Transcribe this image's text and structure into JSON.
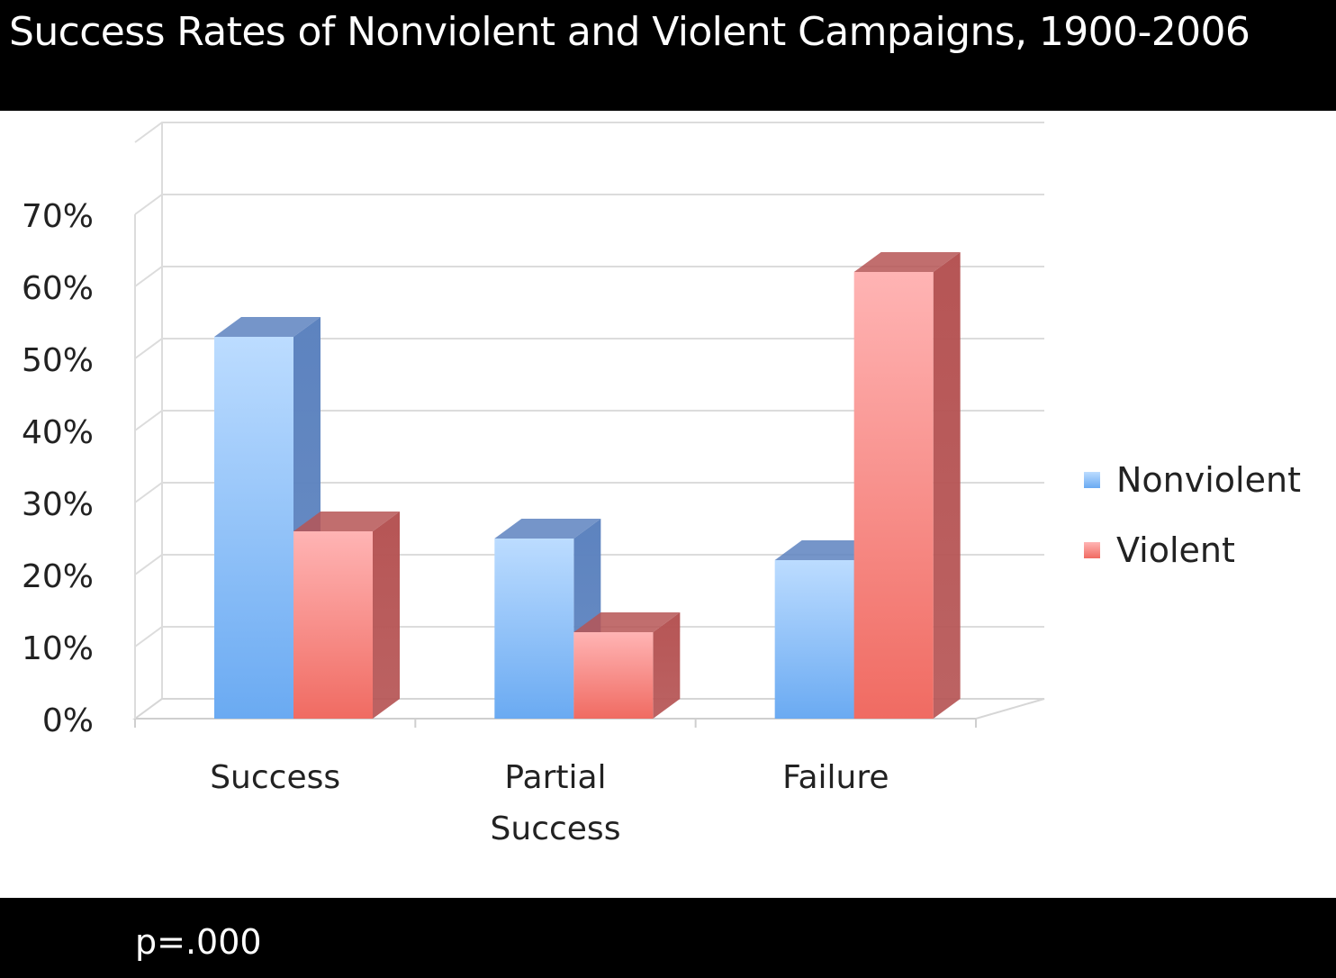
{
  "slide": {
    "title": "Success Rates of Nonviolent and Violent Campaigns, 1900-2006",
    "footnote": "p=.000"
  },
  "chart_data": {
    "type": "bar",
    "style": "3d-clustered-column",
    "title": "",
    "xlabel": "",
    "ylabel": "",
    "categories": [
      "Success",
      "Partial\nSuccess",
      "Failure"
    ],
    "series": [
      {
        "name": "Nonviolent",
        "values": [
          53,
          25,
          22
        ],
        "color": "#6aaaf2",
        "color_light": "#bcdcff",
        "color_dark": "#5d83bf"
      },
      {
        "name": "Violent",
        "values": [
          26,
          12,
          62
        ],
        "color": "#f06b62",
        "color_light": "#ffb4b4",
        "color_dark": "#b65555"
      }
    ],
    "ylim": [
      0,
      70
    ],
    "y_ticks": [
      "0%",
      "10%",
      "20%",
      "30%",
      "40%",
      "50%",
      "60%",
      "70%"
    ],
    "y_tick_step": 10,
    "grid": true,
    "legend_position": "right"
  }
}
